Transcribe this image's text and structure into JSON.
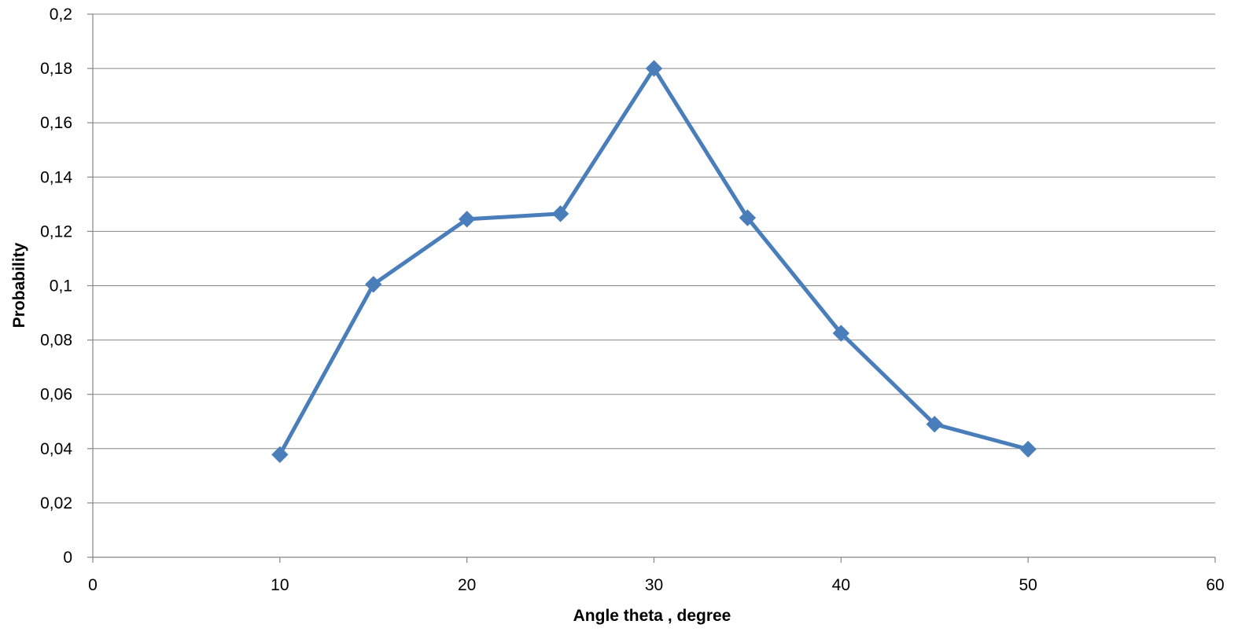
{
  "chart_data": {
    "type": "line",
    "title": "",
    "xlabel": "Angle theta , degree",
    "ylabel": "Probability",
    "xlim": [
      0,
      60
    ],
    "ylim": [
      0,
      0.2
    ],
    "x_ticks": [
      0,
      10,
      20,
      30,
      40,
      50,
      60
    ],
    "x_tick_labels": [
      "0",
      "10",
      "20",
      "30",
      "40",
      "50",
      "60"
    ],
    "y_ticks": [
      0,
      0.02,
      0.04,
      0.06,
      0.08,
      0.1,
      0.12,
      0.14,
      0.16,
      0.18,
      0.2
    ],
    "y_tick_labels": [
      "0",
      "0,02",
      "0,04",
      "0,06",
      "0,08",
      "0,1",
      "0,12",
      "0,14",
      "0,16",
      "0,18",
      "0,2"
    ],
    "grid": "horizontal",
    "legend": "none",
    "series": [
      {
        "color": "#4a7ebb",
        "marker": "diamond",
        "x": [
          10,
          15,
          20,
          25,
          30,
          35,
          40,
          45,
          50
        ],
        "y": [
          0.0378,
          0.1005,
          0.1245,
          0.1265,
          0.18,
          0.125,
          0.0825,
          0.049,
          0.0398
        ]
      }
    ]
  }
}
